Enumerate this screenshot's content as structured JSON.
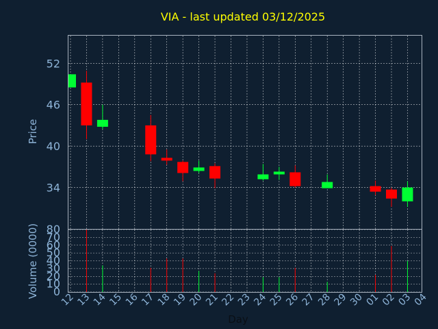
{
  "title": "VIA - last updated 03/12/2025",
  "colors": {
    "background": "#0f1f30",
    "up": "#00ff33",
    "down": "#ff0000",
    "title": "#ffff00",
    "axis_text": "#8eb4d8",
    "xlabel": "#0a0f16",
    "grid": "#ffffff"
  },
  "chart_data": [
    {
      "type": "candlestick",
      "title": "VIA - last updated 03/12/2025",
      "xlabel": "",
      "ylabel": "Price",
      "ylim": [
        28,
        56
      ],
      "yticks": [
        34,
        40,
        46,
        52
      ],
      "grid": true,
      "x_tick_labels": [
        "12",
        "13",
        "14",
        "15",
        "16",
        "17",
        "18",
        "19",
        "20",
        "21",
        "22",
        "23",
        "24",
        "25",
        "26",
        "27",
        "28",
        "29",
        "30",
        "01",
        "02",
        "03",
        "04"
      ],
      "candles": [
        {
          "x": "12",
          "open": 48.5,
          "high": 50.4,
          "low": 48.5,
          "close": 50.4
        },
        {
          "x": "13",
          "open": 49.2,
          "high": 50.9,
          "low": 41.0,
          "close": 43.0
        },
        {
          "x": "14",
          "open": 42.8,
          "high": 46.0,
          "low": 42.5,
          "close": 43.8
        },
        {
          "x": "17",
          "open": 43.0,
          "high": 44.5,
          "low": 37.8,
          "close": 38.8
        },
        {
          "x": "18",
          "open": 38.3,
          "high": 39.5,
          "low": 37.3,
          "close": 37.9
        },
        {
          "x": "19",
          "open": 37.7,
          "high": 37.9,
          "low": 34.9,
          "close": 36.1
        },
        {
          "x": "20",
          "open": 36.4,
          "high": 37.9,
          "low": 36.1,
          "close": 36.9
        },
        {
          "x": "21",
          "open": 37.1,
          "high": 37.5,
          "low": 33.9,
          "close": 35.3
        },
        {
          "x": "24",
          "open": 35.2,
          "high": 37.4,
          "low": 35.0,
          "close": 35.9
        },
        {
          "x": "25",
          "open": 35.9,
          "high": 37.0,
          "low": 35.1,
          "close": 36.3
        },
        {
          "x": "26",
          "open": 36.2,
          "high": 37.2,
          "low": 34.0,
          "close": 34.2
        },
        {
          "x": "28",
          "open": 33.9,
          "high": 35.9,
          "low": 33.9,
          "close": 34.8
        },
        {
          "x": "01",
          "open": 34.2,
          "high": 35.0,
          "low": 32.9,
          "close": 33.4
        },
        {
          "x": "02",
          "open": 33.7,
          "high": 34.0,
          "low": 31.2,
          "close": 32.4
        },
        {
          "x": "03",
          "open": 32.0,
          "high": 34.9,
          "low": 31.2,
          "close": 34.0
        }
      ]
    },
    {
      "type": "bar",
      "xlabel": "Day",
      "ylabel": "Volume (0000)",
      "ylim": [
        0,
        80
      ],
      "yticks": [
        0,
        10,
        20,
        30,
        40,
        50,
        60,
        70,
        80
      ],
      "grid": true,
      "x_tick_labels": [
        "12",
        "13",
        "14",
        "15",
        "16",
        "17",
        "18",
        "19",
        "20",
        "21",
        "22",
        "23",
        "24",
        "25",
        "26",
        "27",
        "28",
        "29",
        "30",
        "01",
        "02",
        "03",
        "04"
      ],
      "bars": [
        {
          "x": "13",
          "value": 80,
          "direction": "down"
        },
        {
          "x": "14",
          "value": 34,
          "direction": "up"
        },
        {
          "x": "17",
          "value": 31,
          "direction": "down"
        },
        {
          "x": "18",
          "value": 43,
          "direction": "down"
        },
        {
          "x": "19",
          "value": 43,
          "direction": "down"
        },
        {
          "x": "20",
          "value": 27,
          "direction": "up"
        },
        {
          "x": "21",
          "value": 24,
          "direction": "down"
        },
        {
          "x": "24",
          "value": 19,
          "direction": "up"
        },
        {
          "x": "25",
          "value": 19,
          "direction": "up"
        },
        {
          "x": "26",
          "value": 31,
          "direction": "down"
        },
        {
          "x": "28",
          "value": 13,
          "direction": "up"
        },
        {
          "x": "01",
          "value": 22,
          "direction": "down"
        },
        {
          "x": "02",
          "value": 59,
          "direction": "down"
        },
        {
          "x": "03",
          "value": 40,
          "direction": "up"
        }
      ]
    }
  ]
}
